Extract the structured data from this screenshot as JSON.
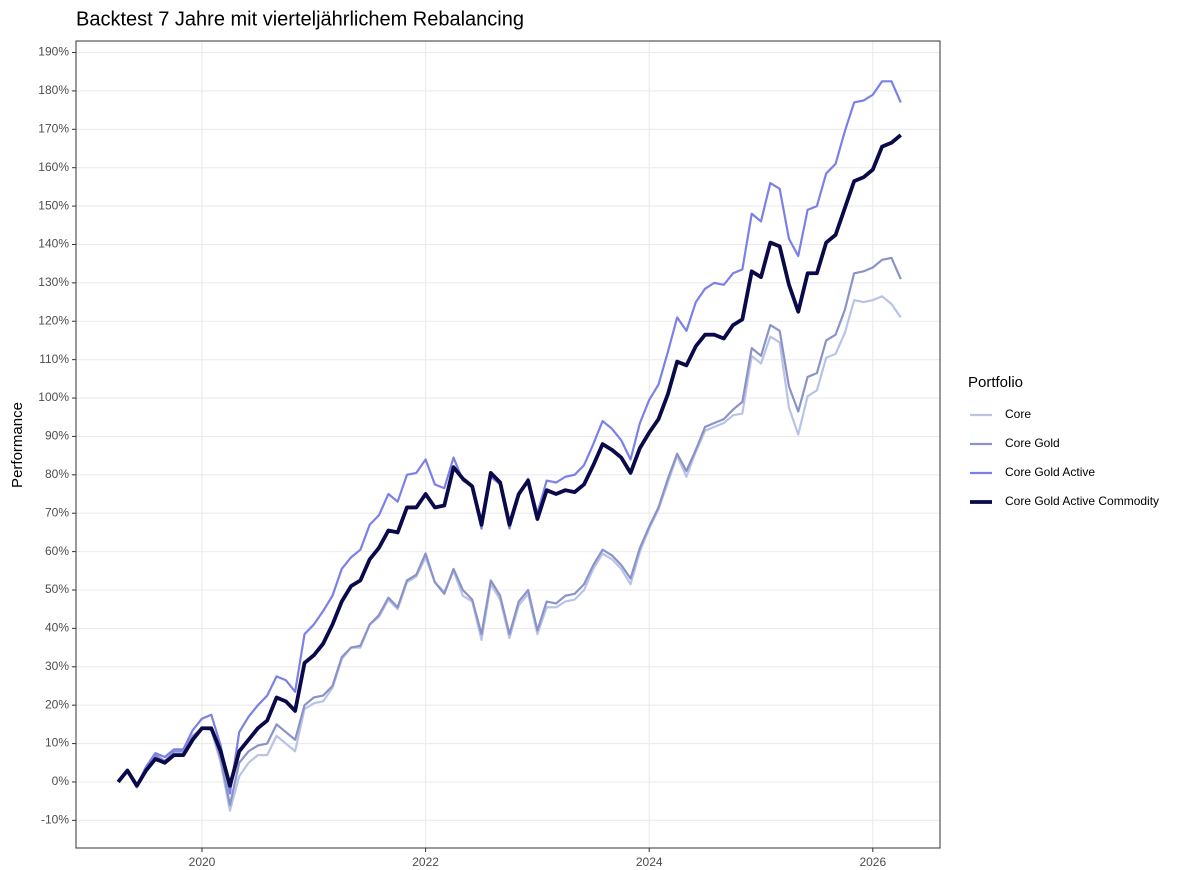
{
  "chart_data": {
    "type": "line",
    "title": "Backtest 7 Jahre mit vierteljährlichem Rebalancing",
    "y_label": "Performance",
    "legend_title": "Portfolio",
    "legend_position": "right",
    "grid": true,
    "x": [
      2019.25,
      2019.333,
      2019.417,
      2019.5,
      2019.583,
      2019.667,
      2019.75,
      2019.833,
      2019.917,
      2020,
      2020.083,
      2020.167,
      2020.25,
      2020.333,
      2020.417,
      2020.5,
      2020.583,
      2020.667,
      2020.75,
      2020.833,
      2020.917,
      2021,
      2021.083,
      2021.167,
      2021.25,
      2021.333,
      2021.417,
      2021.5,
      2021.583,
      2021.667,
      2021.75,
      2021.833,
      2021.917,
      2022,
      2022.083,
      2022.167,
      2022.25,
      2022.333,
      2022.417,
      2022.5,
      2022.583,
      2022.667,
      2022.75,
      2022.833,
      2022.917,
      2023,
      2023.083,
      2023.167,
      2023.25,
      2023.333,
      2023.417,
      2023.5,
      2023.583,
      2023.667,
      2023.75,
      2023.833,
      2023.917,
      2024,
      2024.083,
      2024.167,
      2024.25,
      2024.333,
      2024.417,
      2024.5,
      2024.583,
      2024.667,
      2024.75,
      2024.833,
      2024.917,
      2025,
      2025.083,
      2025.167,
      2025.25,
      2025.333,
      2025.417,
      2025.5,
      2025.583,
      2025.667,
      2025.75,
      2025.833,
      2025.917,
      2026,
      2026.083,
      2026.167,
      2026.25
    ],
    "xlim": [
      2018.873,
      2026.601
    ],
    "xticks": [
      2020,
      2022,
      2024,
      2026
    ],
    "ylim": [
      -17.2,
      193
    ],
    "yticks": [
      {
        "value": -10,
        "label": "-10%"
      },
      {
        "value": 0,
        "label": "0%"
      },
      {
        "value": 10,
        "label": "10%"
      },
      {
        "value": 20,
        "label": "20%"
      },
      {
        "value": 30,
        "label": "30%"
      },
      {
        "value": 40,
        "label": "40%"
      },
      {
        "value": 50,
        "label": "50%"
      },
      {
        "value": 60,
        "label": "60%"
      },
      {
        "value": 70,
        "label": "70%"
      },
      {
        "value": 80,
        "label": "80%"
      },
      {
        "value": 90,
        "label": "90%"
      },
      {
        "value": 100,
        "label": "100%"
      },
      {
        "value": 110,
        "label": "110%"
      },
      {
        "value": 120,
        "label": "120%"
      },
      {
        "value": 130,
        "label": "130%"
      },
      {
        "value": 140,
        "label": "140%"
      },
      {
        "value": 150,
        "label": "150%"
      },
      {
        "value": 160,
        "label": "160%"
      },
      {
        "value": 170,
        "label": "170%"
      },
      {
        "value": 180,
        "label": "180%"
      },
      {
        "value": 190,
        "label": "190%"
      }
    ],
    "series": [
      {
        "name": "Core",
        "color": "#b9c3e8",
        "width": 2.2,
        "values": [
          0,
          3,
          -1.5,
          3,
          7,
          5,
          7.5,
          7.5,
          11.5,
          14,
          13.5,
          5,
          -7.5,
          1.5,
          5,
          7,
          7,
          12,
          10,
          8,
          19,
          20.5,
          21,
          24.5,
          32,
          35,
          35,
          41,
          43,
          47.5,
          45,
          52,
          53.5,
          58.5,
          52,
          49.5,
          55,
          48.5,
          47,
          37,
          51.5,
          47.5,
          37.5,
          46,
          49,
          38.5,
          45.5,
          45.5,
          47,
          47.5,
          50,
          55.5,
          59.5,
          58,
          55.5,
          51.5,
          60,
          66,
          71,
          78,
          85,
          79.5,
          86,
          91.5,
          92.5,
          93.5,
          95.5,
          96,
          111,
          109,
          116,
          114.5,
          97.5,
          90.5,
          100.5,
          102,
          110.5,
          111.5,
          117,
          125.5,
          125,
          125.5,
          126.5,
          124.5,
          121
        ]
      },
      {
        "name": "Core Gold",
        "color": "#8a93c8",
        "width": 2.2,
        "values": [
          0,
          3,
          -1,
          3.5,
          7,
          5.5,
          8,
          8,
          12,
          14,
          14,
          6,
          -6,
          5,
          8,
          9.5,
          10,
          15,
          13,
          11,
          20,
          22,
          22.5,
          25,
          32.5,
          35,
          35.5,
          41,
          43.5,
          48,
          45.5,
          52.5,
          54,
          59.5,
          52,
          49,
          55.5,
          50,
          47.5,
          38.5,
          52.5,
          48.5,
          38.5,
          47,
          50,
          39.5,
          47,
          46.5,
          48.5,
          49,
          51.5,
          56.5,
          60.5,
          59,
          56.5,
          53,
          61,
          66.5,
          71.5,
          79,
          85.5,
          81,
          86.5,
          92.5,
          93.5,
          94.5,
          97,
          99,
          113,
          111,
          119,
          117.5,
          103,
          96.5,
          105.5,
          106.5,
          115,
          116.5,
          123,
          132.5,
          133,
          134,
          136,
          136.5,
          131
        ]
      },
      {
        "name": "Core Gold Active",
        "color": "#7b80e8",
        "width": 2.2,
        "values": [
          0,
          3,
          -1,
          4,
          7.5,
          6.5,
          8.5,
          8.5,
          13.5,
          16.5,
          17.5,
          9.5,
          -3,
          13,
          17,
          20,
          22.5,
          27.5,
          26.5,
          23.5,
          38.5,
          41,
          44.5,
          48.5,
          55.5,
          58.5,
          60.5,
          67,
          69.5,
          75,
          73,
          80,
          80.5,
          84,
          77.5,
          76.5,
          84.5,
          78.5,
          77,
          66,
          79.5,
          77.5,
          66,
          74.5,
          79,
          70,
          78.5,
          78,
          79.5,
          80,
          82.5,
          88,
          94,
          92,
          89,
          84,
          93.5,
          99.5,
          103.5,
          112,
          121,
          117.5,
          125,
          128.5,
          130,
          129.5,
          132.5,
          133.5,
          148,
          146,
          156,
          154.5,
          141.5,
          137,
          149,
          150,
          158.5,
          161,
          169.5,
          177,
          177.5,
          179,
          182.5,
          182.5,
          177
        ]
      },
      {
        "name": "Core Gold Active Commodity",
        "color": "#0a0a4a",
        "width": 3.8,
        "values": [
          0,
          3,
          -1,
          3,
          6,
          5,
          7,
          7,
          11,
          14,
          14,
          8,
          -1,
          8,
          11,
          14,
          16,
          22,
          21,
          18.5,
          31,
          33,
          36,
          41,
          47,
          51,
          52.5,
          58,
          61,
          65.5,
          65,
          71.5,
          71.5,
          75,
          71.5,
          72,
          82,
          79,
          77,
          67,
          80.5,
          78,
          67,
          75,
          78.5,
          68.5,
          76,
          75,
          76,
          75.5,
          77.5,
          82.5,
          88,
          86.5,
          84.5,
          80.5,
          87,
          91,
          94.5,
          101,
          109.5,
          108.5,
          113.5,
          116.5,
          116.5,
          115.5,
          119,
          120.5,
          133,
          131.5,
          140.5,
          139.5,
          129.5,
          122.5,
          132.5,
          132.5,
          140.5,
          142.5,
          149.5,
          156.5,
          157.5,
          159.5,
          165.5,
          166.5,
          168.5
        ]
      }
    ]
  }
}
